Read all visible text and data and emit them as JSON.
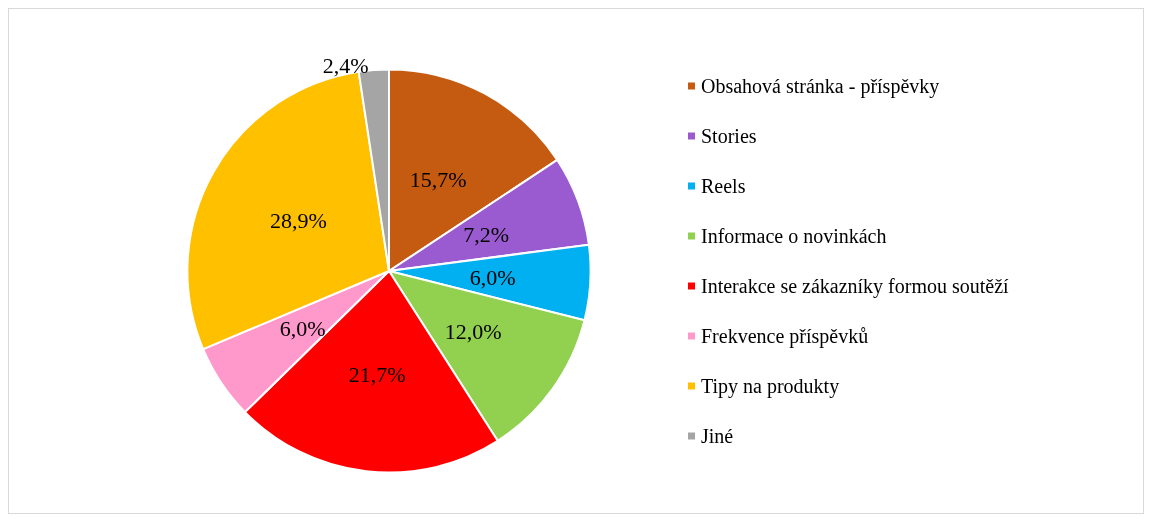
{
  "chart_data": {
    "type": "pie",
    "categories": [
      "Obsahová stránka - příspěvky",
      "Stories",
      "Reels",
      "Informace o novinkách",
      "Interakce se zákazníky formou soutěží",
      "Frekvence příspěvků",
      "Tipy na produkty",
      "Jiné"
    ],
    "values": [
      15.7,
      7.2,
      6.0,
      12.0,
      21.7,
      6.0,
      28.9,
      2.4
    ],
    "value_labels": [
      "15,7%",
      "7,2%",
      "6,0%",
      "12,0%",
      "21,7%",
      "6,0%",
      "28,9%",
      "2,4%"
    ],
    "colors": [
      "#c55a11",
      "#9b5bd0",
      "#00b0f0",
      "#92d050",
      "#ff0000",
      "#ff99cc",
      "#ffc000",
      "#a5a5a5"
    ],
    "legend": "right"
  }
}
